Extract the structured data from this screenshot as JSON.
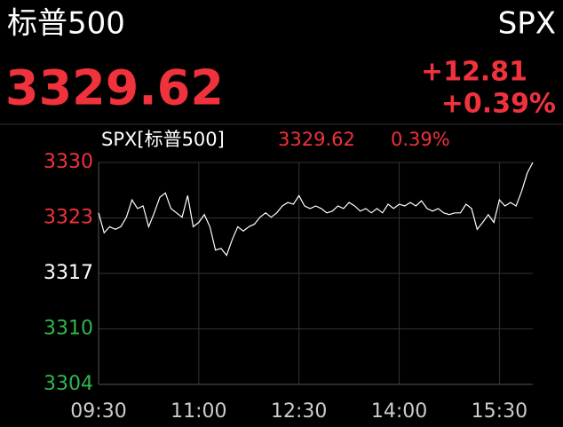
{
  "header": {
    "title": "标普500",
    "symbol": "SPX",
    "price": "3329.62",
    "change": "+12.81",
    "change_pct": "+0.39%"
  },
  "chart_data": {
    "type": "line",
    "legend": {
      "name": "SPX[标普500]",
      "price": "3329.62",
      "change_pct": "0.39%"
    },
    "x": [
      "09:30",
      "09:35",
      "09:40",
      "09:45",
      "09:50",
      "09:55",
      "10:00",
      "10:05",
      "10:10",
      "10:15",
      "10:20",
      "10:25",
      "10:30",
      "10:35",
      "10:40",
      "10:45",
      "10:50",
      "10:55",
      "11:00",
      "11:05",
      "11:10",
      "11:15",
      "11:20",
      "11:25",
      "11:30",
      "11:35",
      "11:40",
      "11:45",
      "11:50",
      "11:55",
      "12:00",
      "12:05",
      "12:10",
      "12:15",
      "12:20",
      "12:25",
      "12:30",
      "12:35",
      "12:40",
      "12:45",
      "12:50",
      "12:55",
      "13:00",
      "13:05",
      "13:10",
      "13:15",
      "13:20",
      "13:25",
      "13:30",
      "13:35",
      "13:40",
      "13:45",
      "13:50",
      "13:55",
      "14:00",
      "14:05",
      "14:10",
      "14:15",
      "14:20",
      "14:25",
      "14:30",
      "14:35",
      "14:40",
      "14:45",
      "14:50",
      "14:55",
      "15:00",
      "15:05",
      "15:10",
      "15:15",
      "15:20",
      "15:25",
      "15:30",
      "15:35",
      "15:40",
      "15:45",
      "15:50",
      "15:55",
      "16:00"
    ],
    "series": [
      {
        "name": "SPX",
        "color": "#ffffff",
        "values": [
          3323.8,
          3321.5,
          3322.2,
          3321.9,
          3322.2,
          3323.3,
          3325.3,
          3324.3,
          3324.6,
          3322.2,
          3323.8,
          3325.6,
          3326.1,
          3324.3,
          3323.8,
          3323.3,
          3325.8,
          3322.2,
          3322.7,
          3323.6,
          3322.2,
          3319.5,
          3319.7,
          3318.9,
          3320.7,
          3322.2,
          3321.7,
          3322.2,
          3322.5,
          3323.3,
          3323.8,
          3323.3,
          3323.8,
          3324.6,
          3325.0,
          3324.8,
          3325.8,
          3324.6,
          3324.3,
          3324.6,
          3324.3,
          3323.8,
          3324.0,
          3324.6,
          3324.3,
          3325.0,
          3324.6,
          3324.0,
          3324.3,
          3323.8,
          3324.3,
          3323.8,
          3324.8,
          3324.3,
          3324.8,
          3324.6,
          3325.0,
          3324.6,
          3325.2,
          3324.3,
          3324.0,
          3324.3,
          3323.8,
          3323.6,
          3323.8,
          3323.8,
          3324.8,
          3324.3,
          3321.9,
          3322.7,
          3323.6,
          3322.7,
          3325.3,
          3324.6,
          3325.0,
          3324.6,
          3326.3,
          3328.4,
          3329.62
        ]
      }
    ],
    "xlim": [
      "09:30",
      "16:00"
    ],
    "xticks": [
      "09:30",
      "11:00",
      "12:30",
      "14:00",
      "15:30"
    ],
    "ylim": [
      3304.0,
      3329.62
    ],
    "yticks": [
      {
        "value": 3304.0,
        "label": "3304"
      },
      {
        "value": 3310.405,
        "label": "3310"
      },
      {
        "value": 3316.81,
        "label": "3317"
      },
      {
        "value": 3323.215,
        "label": "3323"
      },
      {
        "value": 3329.62,
        "label": "3330"
      }
    ],
    "grid": true,
    "up_color": "#f0323c",
    "down_color": "#2eb84e",
    "flat_color": "#ffffff"
  }
}
